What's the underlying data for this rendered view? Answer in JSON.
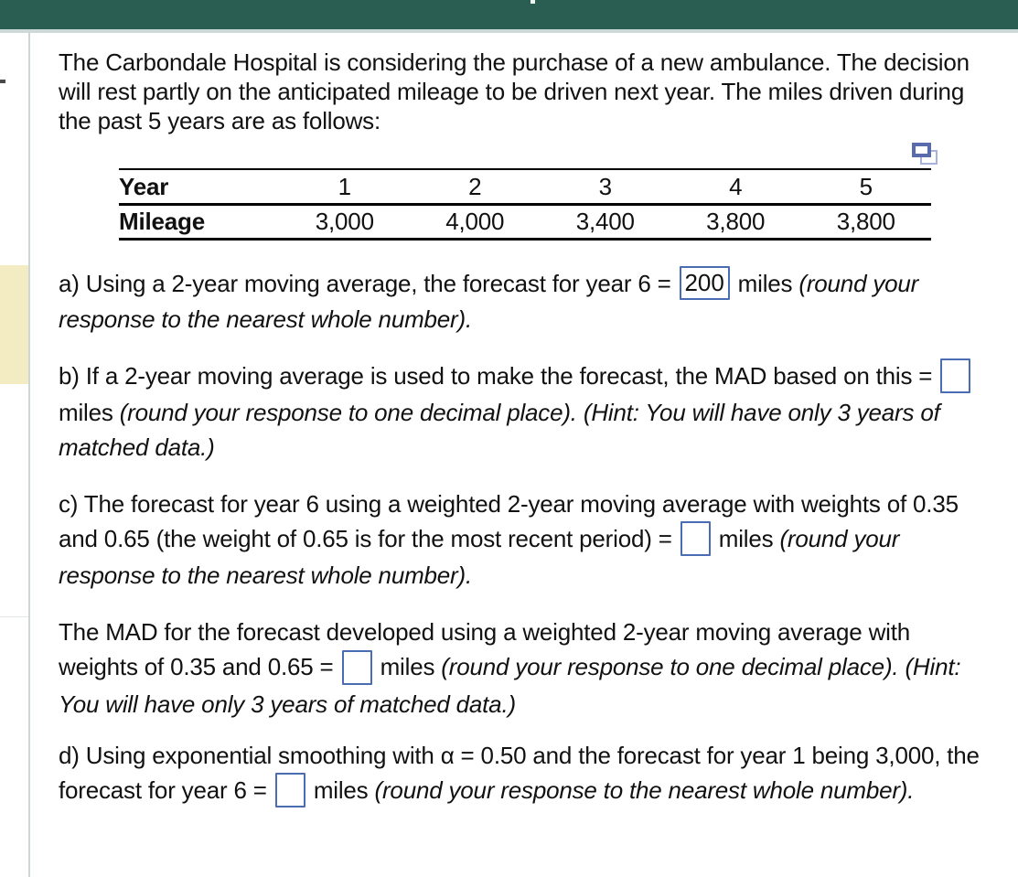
{
  "colors": {
    "header_teal": "#2b5e52",
    "header_band": "#cdd9d6",
    "content_border": "#ccd6d4",
    "left_highlight_cream": "#f3ecc3",
    "input_border_blue": "#4a6cb3",
    "copy_icon_front": "#5a6bab",
    "copy_icon_back": "#a9b3da",
    "table_rule": "#000000"
  },
  "icons": {
    "copy_table": "overlapping-rectangles-copy-icon"
  },
  "problem": {
    "intro": "The Carbondale Hospital is considering the purchase of a new ambulance. The decision will rest partly on the anticipated mileage to be driven next year. The miles driven during the past 5 years are as follows:"
  },
  "table": {
    "row1_label": "Year",
    "row2_label": "Mileage",
    "years": [
      "1",
      "2",
      "3",
      "4",
      "5"
    ],
    "mileage": [
      "3,000",
      "4,000",
      "3,400",
      "3,800",
      "3,800"
    ]
  },
  "questions": {
    "a": {
      "lead": "a) Using a 2-year moving average, the forecast for year 6 =",
      "answer": "200",
      "unit": "miles",
      "note_italic": "(round your response to the nearest whole number)."
    },
    "b": {
      "lead": "b) If a 2-year moving average is used to make the forecast, the MAD based on this =",
      "answer": "",
      "unit": "miles",
      "note_italic": "(round your response to one decimal place).",
      "hint_italic": "(Hint: You will have only 3 years of matched data.)"
    },
    "c": {
      "lead": "c) The forecast for year 6 using a weighted 2-year moving average with weights of 0.35 and 0.65 (the weight of 0.65 is for the most recent period) =",
      "answer": "",
      "unit": "miles",
      "note_italic": "(round your response to the nearest whole number)."
    },
    "c_mad": {
      "lead": "The MAD for the forecast developed using a weighted 2-year moving average with weights of 0.35 and 0.65 =",
      "answer": "",
      "unit": "miles",
      "note_italic": "(round your response to one decimal place).",
      "hint_italic": "(Hint: You will have only 3 years of matched data.)"
    },
    "d": {
      "lead": "d) Using exponential smoothing with α = 0.50 and the forecast for year 1 being 3,000, the forecast for year 6 =",
      "answer": "",
      "unit": "miles",
      "note_italic": "(round your response to the nearest whole number)."
    }
  }
}
